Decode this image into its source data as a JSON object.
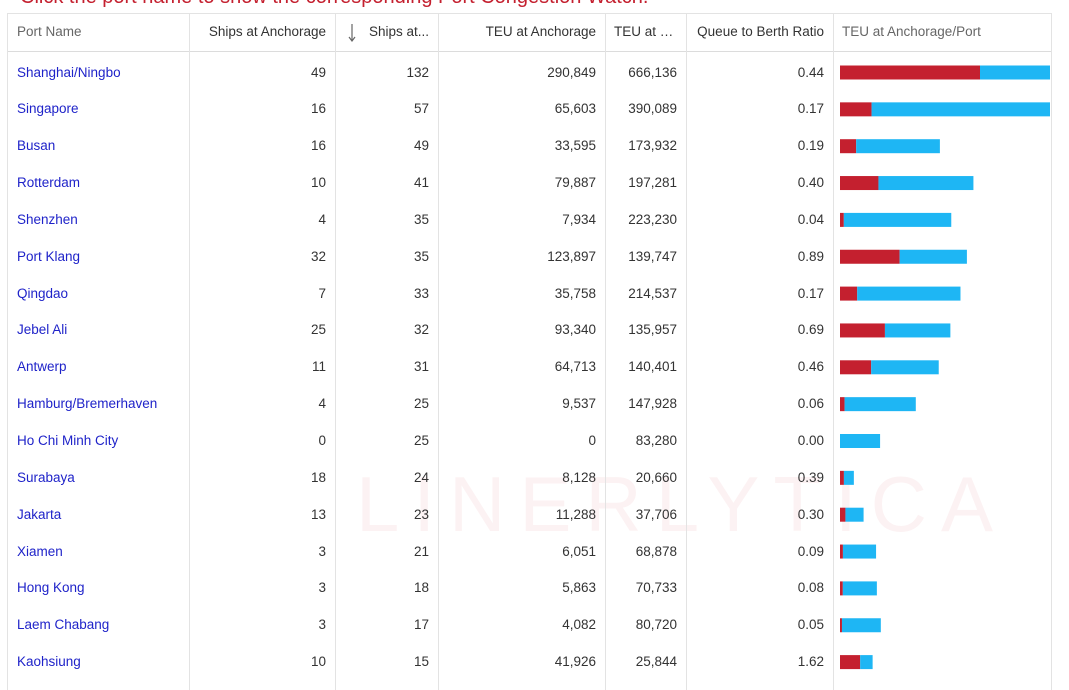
{
  "header": {
    "note": "Click the port name to show the corresponding Port Congestion Watch."
  },
  "watermark": "LINERLYTICA",
  "table": {
    "columns": [
      "Port Name",
      "Ships at Anchorage",
      "Ships at...",
      "TEU at Anchorage",
      "TEU at P...",
      "Queue to Berth Ratio",
      "TEU at Anchorage/Port"
    ],
    "rows": [
      [
        "Shanghai/Ningbo",
        "49",
        "132",
        "290,849",
        "666,136",
        "0.44"
      ],
      [
        "Singapore",
        "16",
        "57",
        "65,603",
        "390,089",
        "0.17"
      ],
      [
        "Busan",
        "16",
        "49",
        "33,595",
        "173,932",
        "0.19"
      ],
      [
        "Rotterdam",
        "10",
        "41",
        "79,887",
        "197,281",
        "0.40"
      ],
      [
        "Shenzhen",
        "4",
        "35",
        "7,934",
        "223,230",
        "0.04"
      ],
      [
        "Port Klang",
        "32",
        "35",
        "123,897",
        "139,747",
        "0.89"
      ],
      [
        "Qingdao",
        "7",
        "33",
        "35,758",
        "214,537",
        "0.17"
      ],
      [
        "Jebel Ali",
        "25",
        "32",
        "93,340",
        "135,957",
        "0.69"
      ],
      [
        "Antwerp",
        "11",
        "31",
        "64,713",
        "140,401",
        "0.46"
      ],
      [
        "Hamburg/Bremerhaven",
        "4",
        "25",
        "9,537",
        "147,928",
        "0.06"
      ],
      [
        "Ho Chi Minh City",
        "0",
        "25",
        "0",
        "83,280",
        "0.00"
      ],
      [
        "Surabaya",
        "18",
        "24",
        "8,128",
        "20,660",
        "0.39"
      ],
      [
        "Jakarta",
        "13",
        "23",
        "11,288",
        "37,706",
        "0.30"
      ],
      [
        "Xiamen",
        "3",
        "21",
        "6,051",
        "68,878",
        "0.09"
      ],
      [
        "Hong Kong",
        "3",
        "18",
        "5,863",
        "70,733",
        "0.08"
      ],
      [
        "Laem Chabang",
        "3",
        "17",
        "4,082",
        "80,720",
        "0.05"
      ],
      [
        "Kaohsiung",
        "10",
        "15",
        "41,926",
        "25,844",
        "1.62"
      ]
    ],
    "bar_colors": [
      "#c4202f",
      "#1eb6f4"
    ]
  }
}
